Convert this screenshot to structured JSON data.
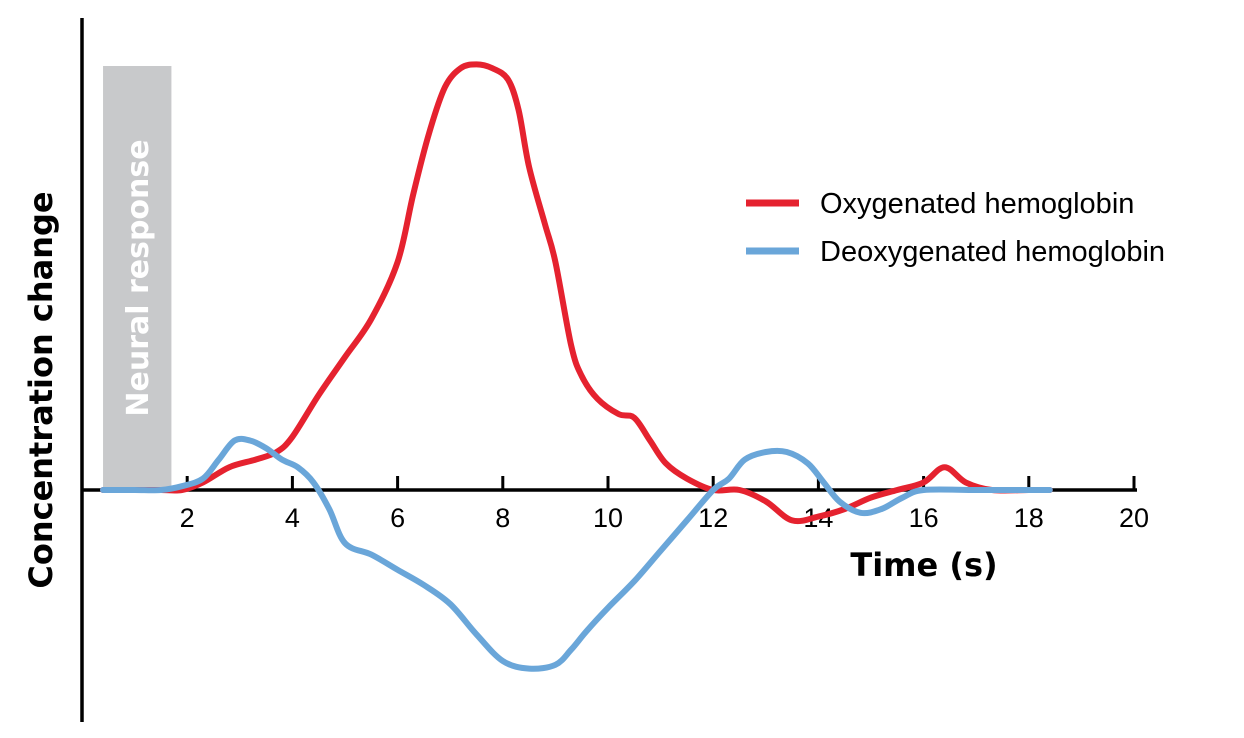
{
  "chart_data": {
    "type": "line",
    "xlabel": "Time (s)",
    "ylabel": "Concentration change",
    "xlim": [
      0,
      20
    ],
    "ylim": [
      -0.55,
      1.1
    ],
    "x_ticks": [
      2,
      4,
      6,
      8,
      10,
      12,
      14,
      16,
      18,
      20
    ],
    "grid": false,
    "legend_position": "right",
    "annotation": {
      "label": "Neural response",
      "x_start": 0.4,
      "x_end": 1.7,
      "color": "#c8c9cb"
    },
    "series": [
      {
        "name": "Oxygenated hemoglobin",
        "color": "#e5222f",
        "x": [
          0.4,
          1.0,
          1.5,
          1.9,
          2.3,
          2.8,
          3.3,
          3.7,
          4.0,
          4.5,
          5.0,
          5.5,
          6.0,
          6.3,
          6.6,
          6.9,
          7.2,
          7.5,
          7.8,
          8.1,
          8.3,
          8.5,
          8.8,
          9.0,
          9.3,
          9.5,
          9.8,
          10.2,
          10.5,
          10.8,
          11.1,
          11.5,
          12.0,
          12.5,
          13.0,
          13.5,
          14.0,
          14.5,
          15.0,
          15.5,
          16.0,
          16.4,
          16.8,
          17.3,
          18.0,
          18.4
        ],
        "y": [
          0.0,
          0.0,
          0.0,
          0.0,
          0.02,
          0.06,
          0.08,
          0.1,
          0.14,
          0.25,
          0.35,
          0.45,
          0.6,
          0.78,
          0.94,
          1.06,
          1.11,
          1.12,
          1.11,
          1.08,
          1.0,
          0.85,
          0.7,
          0.6,
          0.38,
          0.3,
          0.24,
          0.2,
          0.19,
          0.13,
          0.07,
          0.03,
          0.0,
          0.0,
          -0.03,
          -0.08,
          -0.07,
          -0.05,
          -0.02,
          0.0,
          0.02,
          0.06,
          0.02,
          0.0,
          0.0,
          0.0
        ]
      },
      {
        "name": "Deoxygenated hemoglobin",
        "color": "#6aa6d9",
        "x": [
          0.4,
          1.0,
          1.5,
          1.9,
          2.3,
          2.6,
          2.9,
          3.2,
          3.5,
          3.8,
          4.1,
          4.4,
          4.7,
          5.0,
          5.5,
          6.0,
          6.5,
          7.0,
          7.5,
          8.0,
          8.5,
          9.0,
          9.3,
          9.6,
          10.0,
          10.5,
          11.0,
          11.5,
          12.0,
          12.3,
          12.6,
          13.0,
          13.4,
          13.8,
          14.1,
          14.4,
          14.8,
          15.2,
          15.6,
          16.0,
          17.0,
          18.0,
          18.4
        ],
        "y": [
          0.0,
          0.0,
          0.0,
          0.01,
          0.03,
          0.08,
          0.13,
          0.13,
          0.11,
          0.08,
          0.06,
          0.02,
          -0.05,
          -0.14,
          -0.17,
          -0.21,
          -0.25,
          -0.3,
          -0.38,
          -0.45,
          -0.47,
          -0.46,
          -0.42,
          -0.37,
          -0.31,
          -0.24,
          -0.16,
          -0.08,
          0.0,
          0.03,
          0.08,
          0.1,
          0.1,
          0.07,
          0.02,
          -0.03,
          -0.06,
          -0.05,
          -0.02,
          0.0,
          0.0,
          0.0,
          0.0
        ]
      }
    ]
  }
}
